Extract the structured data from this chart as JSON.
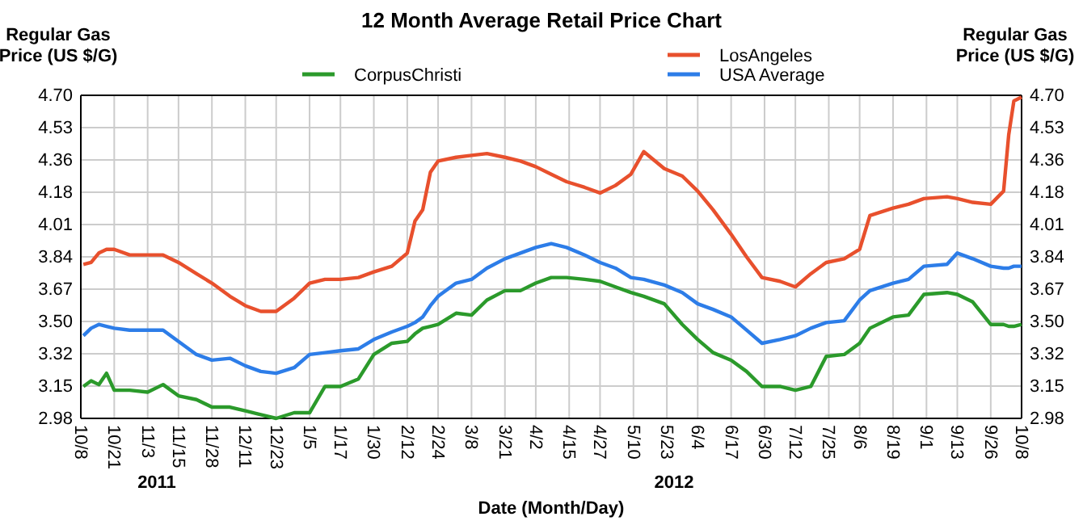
{
  "chart_data": {
    "type": "line",
    "title": "12 Month Average Retail Price Chart",
    "xlabel": "Date (Month/Day)",
    "ylabel": "Regular Gas Price (US $/G)",
    "y2label": "Regular Gas Price (US $/G)",
    "annotations": [
      "2011",
      "2012"
    ],
    "x": [
      "2011-10-09",
      "2011-10-12",
      "2011-10-15",
      "2011-10-18",
      "2011-10-21",
      "2011-10-27",
      "2011-11-03",
      "2011-11-09",
      "2011-11-15",
      "2011-11-22",
      "2011-11-28",
      "2011-12-05",
      "2011-12-11",
      "2011-12-17",
      "2011-12-23",
      "2011-12-30",
      "2012-01-05",
      "2012-01-11",
      "2012-01-17",
      "2012-01-24",
      "2012-01-30",
      "2012-02-06",
      "2012-02-12",
      "2012-02-15",
      "2012-02-18",
      "2012-02-21",
      "2012-02-24",
      "2012-03-02",
      "2012-03-08",
      "2012-03-14",
      "2012-03-21",
      "2012-03-27",
      "2012-04-02",
      "2012-04-08",
      "2012-04-14",
      "2012-04-21",
      "2012-04-27",
      "2012-05-03",
      "2012-05-09",
      "2012-05-14",
      "2012-05-22",
      "2012-05-29",
      "2012-06-04",
      "2012-06-10",
      "2012-06-17",
      "2012-06-23",
      "2012-06-29",
      "2012-07-06",
      "2012-07-12",
      "2012-07-18",
      "2012-07-24",
      "2012-07-31",
      "2012-08-06",
      "2012-08-10",
      "2012-08-19",
      "2012-08-25",
      "2012-08-31",
      "2012-09-09",
      "2012-09-13",
      "2012-09-19",
      "2012-09-26",
      "2012-10-01",
      "2012-10-03",
      "2012-10-05",
      "2012-10-08"
    ],
    "series": [
      {
        "name": "CorpusChristi",
        "color": "#2b9a2b",
        "values": [
          3.15,
          3.18,
          3.16,
          3.22,
          3.13,
          3.13,
          3.12,
          3.16,
          3.1,
          3.08,
          3.04,
          3.04,
          3.02,
          3.0,
          2.98,
          3.01,
          3.01,
          3.15,
          3.15,
          3.19,
          3.32,
          3.38,
          3.39,
          3.43,
          3.46,
          3.47,
          3.48,
          3.54,
          3.53,
          3.61,
          3.66,
          3.66,
          3.7,
          3.73,
          3.73,
          3.72,
          3.71,
          3.68,
          3.65,
          3.63,
          3.59,
          3.48,
          3.4,
          3.33,
          3.29,
          3.23,
          3.15,
          3.15,
          3.13,
          3.15,
          3.31,
          3.32,
          3.38,
          3.46,
          3.52,
          3.53,
          3.64,
          3.65,
          3.64,
          3.6,
          3.48,
          3.48,
          3.47,
          3.47,
          3.48
        ]
      },
      {
        "name": "LosAngeles",
        "color": "#e8502d",
        "values": [
          3.8,
          3.81,
          3.86,
          3.88,
          3.88,
          3.85,
          3.85,
          3.85,
          3.81,
          3.75,
          3.7,
          3.63,
          3.58,
          3.55,
          3.55,
          3.62,
          3.7,
          3.72,
          3.72,
          3.73,
          3.76,
          3.79,
          3.86,
          4.03,
          4.09,
          4.29,
          4.35,
          4.37,
          4.38,
          4.39,
          4.37,
          4.35,
          4.32,
          4.28,
          4.24,
          4.21,
          4.18,
          4.22,
          4.28,
          4.4,
          4.31,
          4.27,
          4.19,
          4.09,
          3.96,
          3.84,
          3.73,
          3.71,
          3.68,
          3.75,
          3.81,
          3.83,
          3.88,
          4.06,
          4.1,
          4.12,
          4.15,
          4.16,
          4.15,
          4.13,
          4.12,
          4.19,
          4.49,
          4.67,
          4.69
        ]
      },
      {
        "name": "USA Average",
        "color": "#2d7de8",
        "values": [
          3.42,
          3.46,
          3.48,
          3.47,
          3.46,
          3.45,
          3.45,
          3.45,
          3.39,
          3.32,
          3.29,
          3.3,
          3.26,
          3.23,
          3.22,
          3.25,
          3.32,
          3.33,
          3.34,
          3.35,
          3.4,
          3.44,
          3.47,
          3.49,
          3.52,
          3.58,
          3.63,
          3.7,
          3.72,
          3.78,
          3.83,
          3.86,
          3.89,
          3.91,
          3.89,
          3.85,
          3.81,
          3.78,
          3.73,
          3.72,
          3.69,
          3.65,
          3.59,
          3.56,
          3.52,
          3.45,
          3.38,
          3.4,
          3.42,
          3.46,
          3.49,
          3.5,
          3.61,
          3.66,
          3.7,
          3.72,
          3.79,
          3.8,
          3.86,
          3.83,
          3.79,
          3.78,
          3.78,
          3.79,
          3.79
        ]
      }
    ],
    "xlim": [
      "2011-10-08",
      "2012-10-08"
    ],
    "xticks": [
      {
        "value": "2011-10-08",
        "label": "10/8"
      },
      {
        "value": "2011-10-21",
        "label": "10/21"
      },
      {
        "value": "2011-11-03",
        "label": "11/3"
      },
      {
        "value": "2011-11-15",
        "label": "11/15"
      },
      {
        "value": "2011-11-28",
        "label": "11/28"
      },
      {
        "value": "2011-12-11",
        "label": "12/11"
      },
      {
        "value": "2011-12-23",
        "label": "12/23"
      },
      {
        "value": "2012-01-05",
        "label": "1/5"
      },
      {
        "value": "2012-01-17",
        "label": "1/17"
      },
      {
        "value": "2012-01-30",
        "label": "1/30"
      },
      {
        "value": "2012-02-12",
        "label": "2/12"
      },
      {
        "value": "2012-02-24",
        "label": "2/24"
      },
      {
        "value": "2012-03-08",
        "label": "3/8"
      },
      {
        "value": "2012-03-21",
        "label": "3/21"
      },
      {
        "value": "2012-04-02",
        "label": "4/2"
      },
      {
        "value": "2012-04-15",
        "label": "4/15"
      },
      {
        "value": "2012-04-27",
        "label": "4/27"
      },
      {
        "value": "2012-05-10",
        "label": "5/10"
      },
      {
        "value": "2012-05-23",
        "label": "5/23"
      },
      {
        "value": "2012-06-04",
        "label": "6/4"
      },
      {
        "value": "2012-06-17",
        "label": "6/17"
      },
      {
        "value": "2012-06-30",
        "label": "6/30"
      },
      {
        "value": "2012-07-12",
        "label": "7/12"
      },
      {
        "value": "2012-07-25",
        "label": "7/25"
      },
      {
        "value": "2012-08-06",
        "label": "8/6"
      },
      {
        "value": "2012-08-19",
        "label": "8/19"
      },
      {
        "value": "2012-09-01",
        "label": "9/1"
      },
      {
        "value": "2012-09-13",
        "label": "9/13"
      },
      {
        "value": "2012-09-26",
        "label": "9/26"
      },
      {
        "value": "2012-10-08",
        "label": "10/8"
      }
    ],
    "ylim": [
      2.98,
      4.7
    ],
    "yticks": [
      2.98,
      {
        "value": 3.152,
        "label": "3.15"
      },
      {
        "value": 3.324,
        "label": "3.32"
      },
      {
        "value": 3.496,
        "label": "3.50"
      },
      {
        "value": 3.668,
        "label": "3.67"
      },
      3.84,
      {
        "value": 4.012,
        "label": "4.01"
      },
      {
        "value": 4.184,
        "label": "4.18"
      },
      {
        "value": 4.356,
        "label": "4.36"
      },
      {
        "value": 4.528,
        "label": "4.53"
      },
      {
        "value": 4.7,
        "label": "4.70"
      }
    ],
    "y2lim": [
      2.98,
      4.7
    ],
    "y2ticks": [
      2.98,
      {
        "value": 3.152,
        "label": "3.15"
      },
      {
        "value": 3.324,
        "label": "3.32"
      },
      {
        "value": 3.496,
        "label": "3.50"
      },
      {
        "value": 3.668,
        "label": "3.67"
      },
      3.84,
      {
        "value": 4.012,
        "label": "4.01"
      },
      {
        "value": 4.184,
        "label": "4.18"
      },
      {
        "value": 4.356,
        "label": "4.36"
      },
      {
        "value": 4.528,
        "label": "4.53"
      },
      {
        "value": 4.7,
        "label": "4.70"
      }
    ],
    "grid": true,
    "legend": "top",
    "marker": "none",
    "line_style": "solid"
  }
}
